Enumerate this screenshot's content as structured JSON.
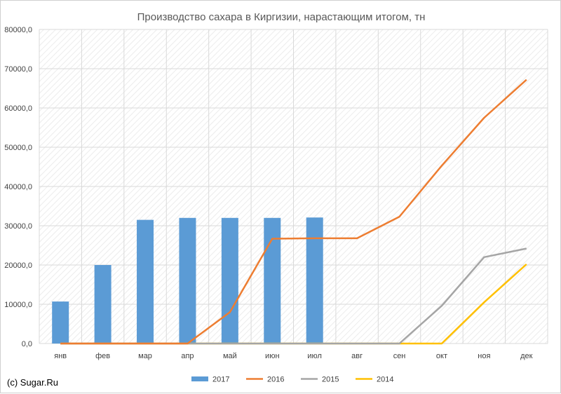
{
  "chart_data": {
    "type": "bar",
    "title": "Производство сахара в Киргизии, нарастающим итогом, тн",
    "categories": [
      "янв",
      "фев",
      "мар",
      "апр",
      "май",
      "июн",
      "июл",
      "авг",
      "сен",
      "окт",
      "ноя",
      "дек"
    ],
    "ylim": [
      0,
      80000
    ],
    "yticks": [
      "0,0",
      "10000,0",
      "20000,0",
      "30000,0",
      "40000,0",
      "50000,0",
      "60000,0",
      "70000,0",
      "80000,0"
    ],
    "grid": true,
    "legend_position": "bottom",
    "series": [
      {
        "name": "2017",
        "type": "bar",
        "color": "#5b9bd5",
        "values": [
          10700,
          20000,
          31500,
          32000,
          32000,
          32000,
          32100,
          null,
          null,
          null,
          null,
          null
        ]
      },
      {
        "name": "2016",
        "type": "line",
        "color": "#ed7d31",
        "values": [
          0,
          0,
          0,
          0,
          8000,
          26700,
          26800,
          26800,
          32300,
          45300,
          57500,
          67200
        ]
      },
      {
        "name": "2015",
        "type": "line",
        "color": "#a5a5a5",
        "values": [
          0,
          0,
          0,
          0,
          0,
          0,
          0,
          0,
          0,
          9600,
          22000,
          24200
        ]
      },
      {
        "name": "2014",
        "type": "line",
        "color": "#ffc000",
        "values": [
          0,
          0,
          0,
          0,
          0,
          0,
          0,
          0,
          0,
          0,
          10500,
          20200
        ]
      }
    ]
  },
  "footer": {
    "note": "(c) Sugar.Ru"
  }
}
